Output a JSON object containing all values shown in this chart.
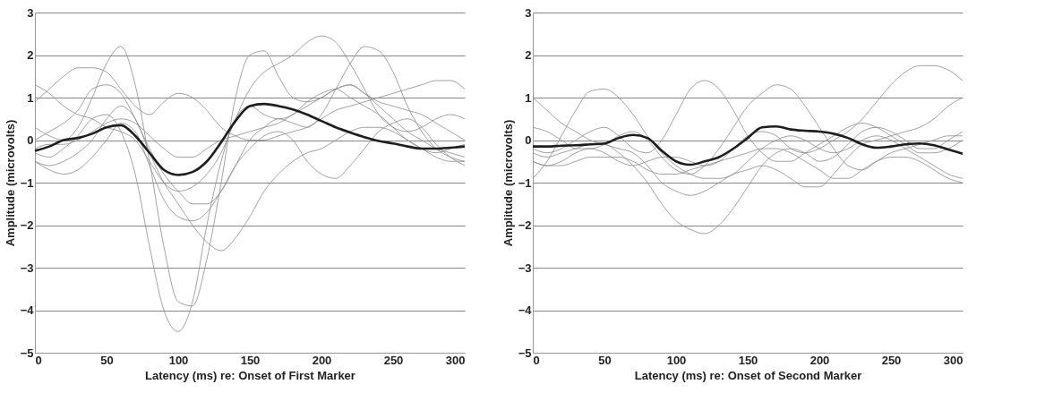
{
  "chart_data": [
    {
      "type": "line",
      "xlabel": "Latency (ms) re: Onset of First Marker",
      "ylabel": "Amplitude (microvolts)",
      "xlim": [
        0,
        300
      ],
      "ylim": [
        -5,
        3
      ],
      "xticks": [
        0,
        50,
        100,
        150,
        200,
        250,
        300
      ],
      "yticks": [
        -5,
        -4,
        -3,
        -2,
        -1,
        0,
        1,
        2,
        3
      ],
      "grid": "y",
      "x": [
        0,
        10,
        20,
        30,
        40,
        50,
        60,
        70,
        80,
        90,
        100,
        110,
        120,
        130,
        140,
        150,
        160,
        170,
        180,
        190,
        200,
        210,
        220,
        230,
        240,
        250,
        260,
        270,
        280,
        290,
        300
      ],
      "series": [
        {
          "color": "#8c8c8c",
          "values": [
            -0.3,
            -0.4,
            -0.2,
            0.1,
            0.5,
            0.6,
            0.2,
            -0.8,
            -2.5,
            -4,
            -4.5,
            -3.8,
            -2,
            -0.5,
            0.5,
            0.8,
            0.6,
            0.5,
            0.6,
            0.9,
            1.1,
            1.2,
            1,
            0.8,
            0.6,
            0.3,
            0,
            -0.2,
            -0.3,
            -0.2,
            -0.1
          ]
        },
        {
          "color": "#8c8c8c",
          "values": [
            0.3,
            0.1,
            0,
            0.3,
            1,
            1.8,
            2.2,
            1.3,
            -0.5,
            -2.5,
            -3.8,
            -3.9,
            -2.8,
            -1,
            1,
            2,
            2.1,
            1.5,
            1,
            0.9,
            1,
            1.2,
            1.3,
            1.1,
            0.8,
            0.5,
            0.2,
            0,
            -0.2,
            -0.3,
            -0.4
          ]
        },
        {
          "color": "#8c8c8c",
          "values": [
            -0.5,
            -0.6,
            -0.5,
            -0.3,
            0,
            0.5,
            0.8,
            0.5,
            -0.3,
            -1,
            -1.5,
            -2,
            -2.4,
            -2.6,
            -2.3,
            -1.8,
            -1.2,
            -0.8,
            -0.5,
            -0.3,
            -0.2,
            0,
            0.2,
            0.3,
            0.3,
            0.2,
            0,
            -0.2,
            -0.4,
            -0.5,
            -0.5
          ]
        },
        {
          "color": "#8c8c8c",
          "values": [
            1.3,
            1.1,
            0.8,
            0.6,
            0.5,
            0.3,
            0.2,
            0,
            -0.5,
            -1,
            -1.2,
            -1.1,
            -0.8,
            -0.3,
            0.5,
            1.2,
            1.6,
            1.8,
            2,
            2.3,
            2.45,
            2.3,
            1.8,
            1.2,
            0.6,
            0.3,
            0.2,
            0.3,
            0.5,
            0.6,
            0.5
          ]
        },
        {
          "color": "#8c8c8c",
          "values": [
            0,
            0.2,
            0.4,
            0.7,
            1.2,
            1.3,
            1.1,
            0.5,
            -0.2,
            -0.8,
            -1.2,
            -1.5,
            -1.5,
            -1.2,
            -0.6,
            0,
            0.3,
            0.5,
            0.4,
            0.3,
            0.6,
            1.2,
            1.8,
            2.2,
            2.1,
            1.6,
            0.8,
            0.2,
            -0.2,
            -0.4,
            -0.5
          ]
        },
        {
          "color": "#8c8c8c",
          "values": [
            0.9,
            1.2,
            1.5,
            1.7,
            1.7,
            1.6,
            1.2,
            0.8,
            0.6,
            0.9,
            1.1,
            1,
            0.7,
            0.3,
            0.1,
            0,
            0,
            0.1,
            0.2,
            0.3,
            0.5,
            0.7,
            0.8,
            0.9,
            1,
            1.1,
            1.2,
            1.3,
            1.4,
            1.4,
            1.2
          ]
        },
        {
          "color": "#8c8c8c",
          "values": [
            -0.5,
            -0.7,
            -0.8,
            -0.7,
            -0.4,
            0,
            0.4,
            0.2,
            -0.6,
            -1.4,
            -1.8,
            -1.9,
            -1.7,
            -1.2,
            -0.6,
            -0.2,
            0.1,
            0.2,
            0,
            -0.5,
            -0.8,
            -0.9,
            -0.6,
            -0.2,
            0.2,
            0.4,
            0.5,
            0.3,
            -0.1,
            -0.4,
            -0.6
          ]
        },
        {
          "color": "#8c8c8c",
          "values": [
            -0.2,
            -0.1,
            -0.1,
            0,
            0.2,
            0.4,
            0.5,
            0.4,
            0.1,
            -0.2,
            -0.4,
            -0.4,
            -0.2,
            0,
            0.1,
            0.2,
            0.3,
            0.4,
            0.6,
            0.8,
            1,
            1.2,
            1.3,
            1.1,
            0.9,
            0.8,
            0.7,
            0.6,
            0.4,
            0.2,
            0
          ]
        },
        {
          "color": "#1e1e1e",
          "values": [
            -0.25,
            -0.15,
            0,
            0.05,
            0.15,
            0.3,
            0.35,
            0.1,
            -0.3,
            -0.7,
            -0.82,
            -0.75,
            -0.5,
            -0.05,
            0.45,
            0.8,
            0.85,
            0.8,
            0.72,
            0.6,
            0.45,
            0.3,
            0.18,
            0.07,
            -0.02,
            -0.08,
            -0.15,
            -0.2,
            -0.2,
            -0.18,
            -0.15
          ]
        }
      ]
    },
    {
      "type": "line",
      "xlabel": "Latency (ms) re: Onset of Second Marker",
      "ylabel": "Amplitude (microvolts)",
      "xlim": [
        0,
        300
      ],
      "ylim": [
        -5,
        3
      ],
      "xticks": [
        0,
        50,
        100,
        150,
        200,
        250,
        300
      ],
      "yticks": [
        -5,
        -4,
        -3,
        -2,
        -1,
        0,
        1,
        2,
        3
      ],
      "grid": "y",
      "x": [
        0,
        10,
        20,
        30,
        40,
        50,
        60,
        70,
        80,
        90,
        100,
        110,
        120,
        130,
        140,
        150,
        160,
        170,
        180,
        190,
        200,
        210,
        220,
        230,
        240,
        250,
        260,
        270,
        280,
        290,
        300
      ],
      "series": [
        {
          "color": "#8c8c8c",
          "values": [
            -0.3,
            -0.4,
            -0.3,
            -0.2,
            -0.1,
            -0.1,
            -0.3,
            -0.6,
            -1,
            -1.5,
            -1.9,
            -2.1,
            -2.2,
            -2,
            -1.6,
            -1.1,
            -0.6,
            -0.3,
            -0.2,
            -0.3,
            -0.5,
            -0.4,
            -0.1,
            0.2,
            0.3,
            0.2,
            0,
            -0.2,
            -0.2,
            0,
            0.2
          ]
        },
        {
          "color": "#8c8c8c",
          "values": [
            -0.5,
            -0.6,
            -0.5,
            -0.3,
            -0.2,
            -0.3,
            -0.5,
            -0.6,
            -0.5,
            -0.4,
            -0.4,
            -0.5,
            -0.6,
            -0.5,
            -0.2,
            0.1,
            0.2,
            0.1,
            -0.2,
            -0.3,
            -0.2,
            0,
            0.2,
            0.5,
            0.9,
            1.3,
            1.6,
            1.75,
            1.75,
            1.65,
            1.4
          ]
        },
        {
          "color": "#8c8c8c",
          "values": [
            -0.2,
            -0.3,
            -0.2,
            0,
            0.2,
            0.3,
            0.1,
            -0.2,
            -0.3,
            0,
            0.6,
            1.2,
            1.4,
            1.2,
            0.7,
            0.1,
            -0.3,
            -0.5,
            -0.5,
            -0.3,
            -0.1,
            0.1,
            0.3,
            0.4,
            0.3,
            0.1,
            -0.1,
            -0.3,
            -0.3,
            -0.2,
            0
          ]
        },
        {
          "color": "#8c8c8c",
          "values": [
            -0.9,
            -0.5,
            0.1,
            0.7,
            1.15,
            1.2,
            1,
            0.6,
            0.1,
            -0.3,
            -0.6,
            -0.8,
            -0.9,
            -0.9,
            -0.8,
            -0.5,
            -0.2,
            0,
            0.1,
            0,
            -0.2,
            -0.3,
            -0.2,
            0,
            0.1,
            0,
            -0.2,
            -0.4,
            -0.6,
            -0.8,
            -0.9
          ]
        },
        {
          "color": "#8c8c8c",
          "values": [
            0.3,
            0.2,
            0,
            -0.2,
            -0.2,
            -0.1,
            0.1,
            0.2,
            0,
            -0.4,
            -0.7,
            -0.8,
            -0.6,
            -0.2,
            0.3,
            0.8,
            1.1,
            1.3,
            1.2,
            0.8,
            0.3,
            -0.2,
            -0.6,
            -0.7,
            -0.5,
            -0.3,
            -0.2,
            -0.1,
            0,
            0.1,
            0.1
          ]
        },
        {
          "color": "#8c8c8c",
          "values": [
            1,
            0.7,
            0.4,
            0.2,
            0,
            -0.1,
            -0.2,
            -0.3,
            -0.6,
            -1,
            -1.2,
            -1.3,
            -1.2,
            -1,
            -0.8,
            -0.7,
            -0.6,
            -0.7,
            -0.9,
            -1.1,
            -1.1,
            -0.8,
            -0.4,
            -0.1,
            0,
            0.1,
            0.2,
            0.3,
            0.5,
            0.8,
            1
          ]
        },
        {
          "color": "#8c8c8c",
          "values": [
            -0.5,
            -0.6,
            -0.6,
            -0.5,
            -0.4,
            -0.4,
            -0.4,
            -0.5,
            -0.7,
            -0.8,
            -0.8,
            -0.7,
            -0.6,
            -0.5,
            -0.4,
            -0.3,
            -0.2,
            -0.2,
            -0.3,
            -0.5,
            -0.7,
            -0.9,
            -0.9,
            -0.7,
            -0.5,
            -0.4,
            -0.4,
            -0.5,
            -0.7,
            -0.9,
            -1
          ]
        },
        {
          "color": "#1e1e1e",
          "values": [
            -0.15,
            -0.15,
            -0.13,
            -0.12,
            -0.1,
            -0.08,
            0.05,
            0.12,
            0.05,
            -0.25,
            -0.5,
            -0.58,
            -0.5,
            -0.4,
            -0.2,
            0.05,
            0.3,
            0.32,
            0.25,
            0.22,
            0.2,
            0.15,
            0.05,
            -0.1,
            -0.18,
            -0.15,
            -0.1,
            -0.08,
            -0.12,
            -0.22,
            -0.32
          ]
        }
      ]
    }
  ]
}
